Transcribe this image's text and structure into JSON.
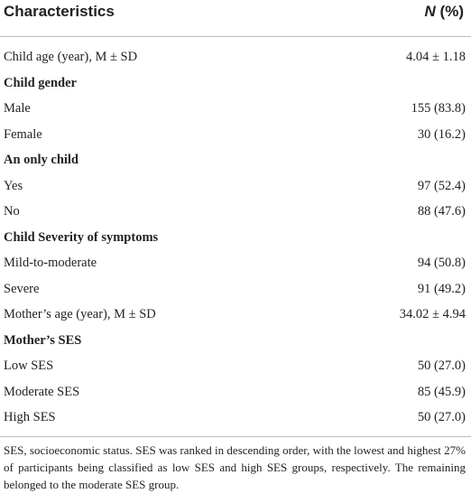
{
  "header": {
    "title": "Characteristics",
    "n_symbol": "N",
    "n_unit": "(%)"
  },
  "rows": [
    {
      "label": "Child age (year), M ± SD",
      "value": "4.04 ± 1.18"
    },
    {
      "label": "Child gender",
      "section": true
    },
    {
      "label": "Male",
      "value": "155 (83.8)"
    },
    {
      "label": "Female",
      "value": "30 (16.2)"
    },
    {
      "label": "An only child",
      "section": true
    },
    {
      "label": "Yes",
      "value": "97 (52.4)"
    },
    {
      "label": "No",
      "value": "88 (47.6)"
    },
    {
      "label": "Child Severity of symptoms",
      "section": true
    },
    {
      "label": "Mild-to-moderate",
      "value": "94 (50.8)"
    },
    {
      "label": "Severe",
      "value": "91 (49.2)"
    },
    {
      "label": "Mother’s age (year), M ± SD",
      "value": "34.02 ± 4.94"
    },
    {
      "label": "Mother’s SES",
      "section": true
    },
    {
      "label": "Low SES",
      "value": "50 (27.0)"
    },
    {
      "label": "Moderate SES",
      "value": "85 (45.9)"
    },
    {
      "label": "High SES",
      "value": "50 (27.0)"
    }
  ],
  "footnote": "SES, socioeconomic status. SES was ranked in descending order, with the lowest and highest 27% of participants being classified as low SES and high SES groups, respectively. The remaining belonged to the moderate SES group."
}
